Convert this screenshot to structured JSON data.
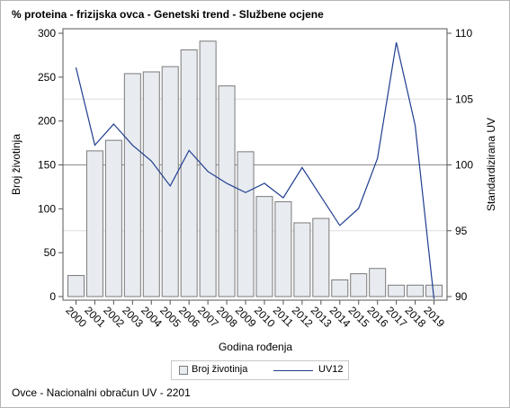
{
  "title": "% proteina - frizijska ovca - Genetski trend - Službene ocjene",
  "footnote": "Ovce - Nacionalni obračun UV - 2201",
  "legend": {
    "bar_label": "Broj životinja",
    "line_label": "UV12"
  },
  "colors": {
    "bar_fill": "#e8ebf0",
    "bar_stroke": "#7a7a7a",
    "line": "#1f3d8f",
    "grid": "#dddddd",
    "ref_line": "#8c8c8c"
  },
  "chart_data": {
    "type": "bar+line",
    "title": "% proteina - frizijska ovca - Genetski trend - Službene ocjene",
    "xlabel": "Godina rođenja",
    "ylabel": "Broj životinja",
    "y2label": "Standardizirana UV",
    "categories": [
      "2000",
      "2001",
      "2002",
      "2003",
      "2004",
      "2005",
      "2006",
      "2007",
      "2008",
      "2009",
      "2010",
      "2011",
      "2012",
      "2013",
      "2014",
      "2015",
      "2016",
      "2017",
      "2018",
      "2019"
    ],
    "ylim": [
      0,
      300
    ],
    "yticks": [
      0,
      50,
      100,
      150,
      200,
      250,
      300
    ],
    "y2lim": [
      90,
      110
    ],
    "y2ticks": [
      90,
      95,
      100,
      105,
      110
    ],
    "series": [
      {
        "name": "Broj životinja",
        "type": "bar",
        "axis": "left",
        "values": [
          24,
          166,
          178,
          254,
          256,
          262,
          281,
          291,
          240,
          165,
          114,
          108,
          84,
          89,
          19,
          26,
          32,
          13,
          13,
          13
        ]
      },
      {
        "name": "UV12",
        "type": "line",
        "axis": "right",
        "values": [
          107.4,
          101.5,
          103.1,
          101.5,
          100.3,
          98.4,
          101.1,
          99.5,
          98.6,
          97.9,
          98.6,
          97.5,
          99.8,
          97.6,
          95.4,
          96.7,
          100.5,
          109.3,
          103.0,
          89.8
        ]
      }
    ],
    "reference_line_y2": 100,
    "gridlines_y2": [
      95,
      105
    ],
    "legend_position": "bottom"
  }
}
